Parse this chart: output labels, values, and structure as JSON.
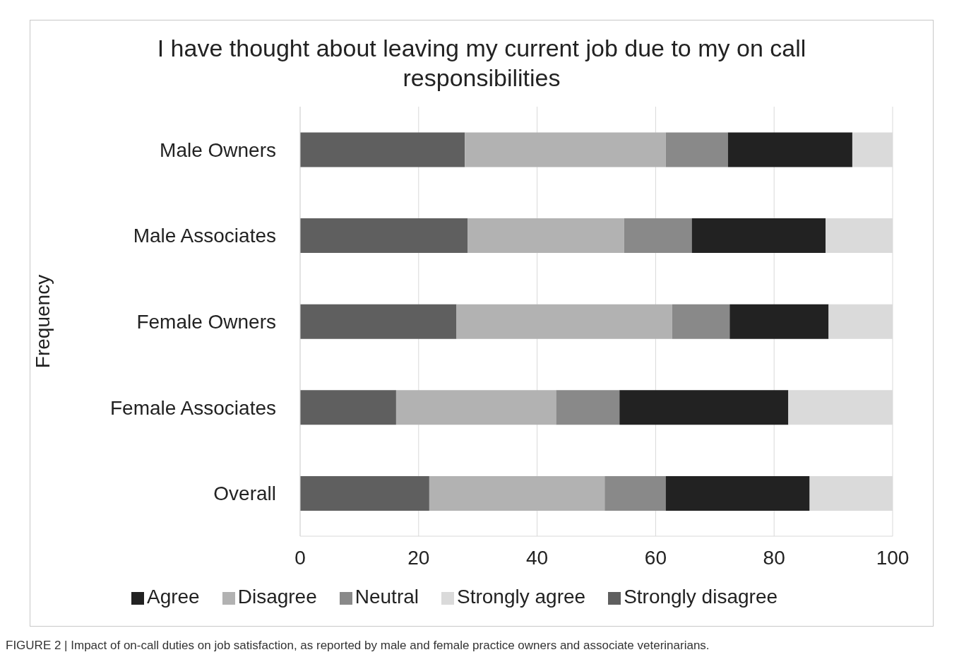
{
  "chart_data": {
    "type": "bar",
    "orientation": "horizontal",
    "stacked": true,
    "title": "I have thought about leaving my current job due to my on call responsibilities",
    "ylabel": "Frequency",
    "categories": [
      "Male Owners",
      "Male Associates",
      "Female Owners",
      "Female Associates",
      "Overall"
    ],
    "series": [
      {
        "name": "Strongly disagree",
        "color": "#5f5f5f",
        "values": [
          27.8,
          28.3,
          26.4,
          16.2,
          21.8
        ]
      },
      {
        "name": "Disagree",
        "color": "#b2b2b2",
        "values": [
          33.9,
          26.4,
          36.4,
          27.0,
          29.6
        ]
      },
      {
        "name": "Neutral",
        "color": "#898989",
        "values": [
          10.5,
          11.4,
          9.7,
          10.7,
          10.3
        ]
      },
      {
        "name": "Agree",
        "color": "#222222",
        "values": [
          21.0,
          22.6,
          16.7,
          28.5,
          24.3
        ]
      },
      {
        "name": "Strongly agree",
        "color": "#dadada",
        "values": [
          6.8,
          11.3,
          10.8,
          17.6,
          14.0
        ]
      }
    ],
    "xlim": [
      0,
      100
    ],
    "xticks": [
      0,
      20,
      40,
      60,
      80,
      100
    ],
    "grid": "x",
    "legend": "bottom",
    "annotations": [
      "FIGURE 2 | Impact of on-call duties on job satisfaction, as reported by male and female practice owners and associate veterinarians."
    ]
  }
}
